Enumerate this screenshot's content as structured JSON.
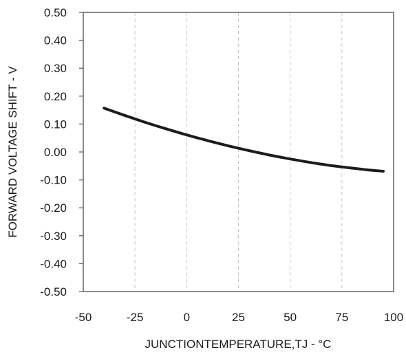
{
  "chart_data": {
    "type": "line",
    "title": "",
    "xlabel": "JUNCTIONTEMPERATURE,TJ - °C",
    "ylabel": "FORWARD VOLTAGE SHIFT - V",
    "xlim": [
      -50,
      100
    ],
    "ylim": [
      -0.5,
      0.5
    ],
    "x_ticks": [
      "-50",
      "-25",
      "0",
      "25",
      "50",
      "75",
      "100"
    ],
    "y_ticks": [
      "0.50",
      "0.40",
      "0.30",
      "0.20",
      "0.10",
      "0.00",
      "-0.10",
      "-0.20",
      "-0.30",
      "-0.40",
      "-0.50"
    ],
    "grid": "vertical",
    "legend": "none",
    "line_color": "#1c1c1c",
    "series": [
      {
        "x": [
          -40,
          -30,
          -20,
          -10,
          0,
          10,
          20,
          30,
          40,
          50,
          60,
          70,
          80,
          90,
          95
        ],
        "values": [
          0.157,
          0.131,
          0.106,
          0.083,
          0.061,
          0.041,
          0.022,
          0.005,
          -0.011,
          -0.025,
          -0.038,
          -0.049,
          -0.058,
          -0.066,
          -0.069
        ]
      }
    ]
  }
}
